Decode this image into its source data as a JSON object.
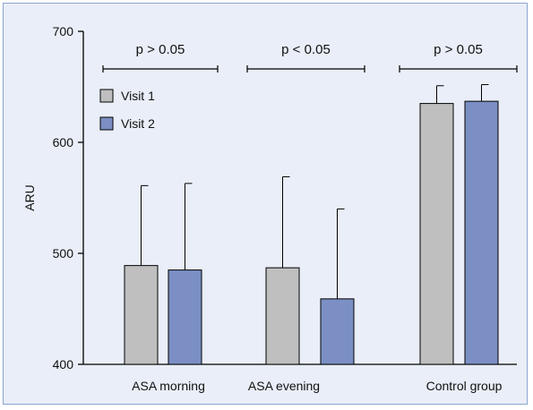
{
  "chart_data": {
    "type": "bar",
    "categories": [
      "ASA morning",
      "ASA evening",
      "Control group"
    ],
    "series": [
      {
        "name": "Visit 1",
        "values": [
          489,
          487,
          635
        ],
        "error": [
          72,
          82,
          16
        ],
        "color": "#bfbfbf"
      },
      {
        "name": "Visit 2",
        "values": [
          485,
          459,
          637
        ],
        "error": [
          78,
          81,
          15
        ],
        "color": "#7b8fc4"
      }
    ],
    "ylabel": "ARU",
    "xlabel": "",
    "ylim": [
      400,
      700
    ],
    "yticks": [
      400,
      500,
      600,
      700
    ],
    "yticklabels": [
      "400",
      "500",
      "600",
      "700"
    ],
    "legend_position": "top-left",
    "grid": false,
    "annotations": [
      "p > 0.05",
      "p < 0.05",
      "p > 0.05"
    ]
  }
}
